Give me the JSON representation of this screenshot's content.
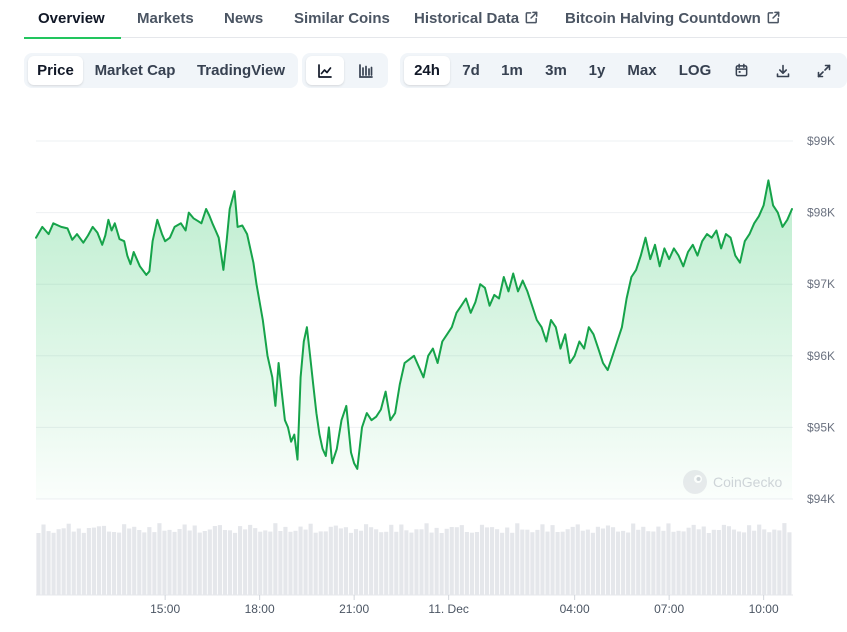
{
  "tabs": {
    "overview": "Overview",
    "markets": "Markets",
    "news": "News",
    "similar": "Similar Coins",
    "historical": "Historical Data",
    "halving": "Bitcoin Halving Countdown"
  },
  "chart_type_toggle": {
    "price": "Price",
    "market_cap": "Market Cap",
    "tradingview": "TradingView"
  },
  "view_icons": [
    "line-chart-icon",
    "candlestick-icon"
  ],
  "ranges": {
    "h24": "24h",
    "d7": "7d",
    "m1": "1m",
    "m3": "3m",
    "y1": "1y",
    "max": "Max",
    "log": "LOG"
  },
  "selected": {
    "chart_type": "Price",
    "range": "24h"
  },
  "tool_icons": [
    "calendar-icon",
    "download-icon",
    "expand-icon"
  ],
  "watermark": "CoinGecko",
  "colors": {
    "accent": "#16a34a",
    "tab_underline": "#22c55e",
    "area_fill": "#22c55e"
  },
  "chart_data": {
    "type": "area",
    "title": "",
    "xlabel": "",
    "ylabel": "",
    "ylim": [
      93800,
      99300
    ],
    "y_ticks": [
      {
        "value": 99000,
        "label": "$99K"
      },
      {
        "value": 98000,
        "label": "$98K"
      },
      {
        "value": 97000,
        "label": "$97K"
      },
      {
        "value": 96000,
        "label": "$96K"
      },
      {
        "value": 95000,
        "label": "$95K"
      },
      {
        "value": 94000,
        "label": "$94K"
      }
    ],
    "x_domain": [
      0,
      24
    ],
    "x_ticks": [
      {
        "t": 4.1,
        "label": "15:00"
      },
      {
        "t": 7.1,
        "label": "18:00"
      },
      {
        "t": 10.1,
        "label": "21:00"
      },
      {
        "t": 13.1,
        "label": "11. Dec"
      },
      {
        "t": 17.1,
        "label": "04:00"
      },
      {
        "t": 20.1,
        "label": "07:00"
      },
      {
        "t": 23.1,
        "label": "10:00"
      }
    ],
    "series": [
      {
        "points": [
          [
            0.0,
            97650
          ],
          [
            0.2,
            97800
          ],
          [
            0.4,
            97700
          ],
          [
            0.55,
            97850
          ],
          [
            0.8,
            97800
          ],
          [
            1.0,
            97780
          ],
          [
            1.15,
            97620
          ],
          [
            1.3,
            97700
          ],
          [
            1.5,
            97580
          ],
          [
            1.65,
            97680
          ],
          [
            1.8,
            97800
          ],
          [
            1.95,
            97720
          ],
          [
            2.1,
            97550
          ],
          [
            2.2,
            97680
          ],
          [
            2.3,
            97900
          ],
          [
            2.4,
            97750
          ],
          [
            2.5,
            97850
          ],
          [
            2.65,
            97630
          ],
          [
            2.8,
            97600
          ],
          [
            2.9,
            97400
          ],
          [
            3.0,
            97280
          ],
          [
            3.1,
            97450
          ],
          [
            3.3,
            97250
          ],
          [
            3.5,
            97130
          ],
          [
            3.6,
            97180
          ],
          [
            3.7,
            97600
          ],
          [
            3.85,
            97900
          ],
          [
            4.0,
            97700
          ],
          [
            4.1,
            97600
          ],
          [
            4.25,
            97650
          ],
          [
            4.4,
            97800
          ],
          [
            4.6,
            97850
          ],
          [
            4.75,
            97750
          ],
          [
            4.85,
            98000
          ],
          [
            5.0,
            97920
          ],
          [
            5.15,
            97880
          ],
          [
            5.25,
            97850
          ],
          [
            5.4,
            98050
          ],
          [
            5.5,
            97960
          ],
          [
            5.6,
            97850
          ],
          [
            5.7,
            97750
          ],
          [
            5.8,
            97650
          ],
          [
            5.95,
            97200
          ],
          [
            6.05,
            97600
          ],
          [
            6.15,
            98050
          ],
          [
            6.3,
            98300
          ],
          [
            6.4,
            97800
          ],
          [
            6.55,
            97820
          ],
          [
            6.7,
            97700
          ],
          [
            6.9,
            97300
          ],
          [
            7.0,
            97000
          ],
          [
            7.2,
            96500
          ],
          [
            7.35,
            96000
          ],
          [
            7.5,
            95700
          ],
          [
            7.6,
            95300
          ],
          [
            7.7,
            95900
          ],
          [
            7.8,
            95500
          ],
          [
            7.9,
            95100
          ],
          [
            8.0,
            95000
          ],
          [
            8.1,
            94800
          ],
          [
            8.2,
            94900
          ],
          [
            8.3,
            94550
          ],
          [
            8.4,
            95700
          ],
          [
            8.5,
            96200
          ],
          [
            8.6,
            96400
          ],
          [
            8.7,
            96000
          ],
          [
            8.8,
            95600
          ],
          [
            8.9,
            95200
          ],
          [
            9.0,
            94900
          ],
          [
            9.1,
            94700
          ],
          [
            9.2,
            94600
          ],
          [
            9.3,
            95000
          ],
          [
            9.4,
            94500
          ],
          [
            9.55,
            94700
          ],
          [
            9.7,
            95100
          ],
          [
            9.85,
            95300
          ],
          [
            10.0,
            94650
          ],
          [
            10.1,
            94500
          ],
          [
            10.2,
            94420
          ],
          [
            10.35,
            95000
          ],
          [
            10.5,
            95200
          ],
          [
            10.65,
            95100
          ],
          [
            10.8,
            95150
          ],
          [
            10.95,
            95250
          ],
          [
            11.1,
            95500
          ],
          [
            11.25,
            95100
          ],
          [
            11.4,
            95200
          ],
          [
            11.55,
            95600
          ],
          [
            11.7,
            95900
          ],
          [
            11.85,
            95950
          ],
          [
            12.0,
            96000
          ],
          [
            12.15,
            95850
          ],
          [
            12.3,
            95700
          ],
          [
            12.45,
            96000
          ],
          [
            12.6,
            96100
          ],
          [
            12.75,
            95900
          ],
          [
            12.9,
            96200
          ],
          [
            13.05,
            96300
          ],
          [
            13.2,
            96400
          ],
          [
            13.35,
            96600
          ],
          [
            13.5,
            96700
          ],
          [
            13.65,
            96800
          ],
          [
            13.8,
            96600
          ],
          [
            13.95,
            96750
          ],
          [
            14.1,
            97000
          ],
          [
            14.25,
            96950
          ],
          [
            14.4,
            96700
          ],
          [
            14.55,
            96850
          ],
          [
            14.7,
            96800
          ],
          [
            14.85,
            97100
          ],
          [
            15.0,
            96900
          ],
          [
            15.15,
            97150
          ],
          [
            15.3,
            96900
          ],
          [
            15.45,
            97050
          ],
          [
            15.6,
            96900
          ],
          [
            15.75,
            96700
          ],
          [
            15.9,
            96500
          ],
          [
            16.05,
            96400
          ],
          [
            16.2,
            96200
          ],
          [
            16.35,
            96500
          ],
          [
            16.5,
            96400
          ],
          [
            16.65,
            96100
          ],
          [
            16.8,
            96300
          ],
          [
            16.95,
            95900
          ],
          [
            17.1,
            96000
          ],
          [
            17.25,
            96200
          ],
          [
            17.4,
            96100
          ],
          [
            17.55,
            96400
          ],
          [
            17.7,
            96300
          ],
          [
            17.85,
            96100
          ],
          [
            18.0,
            95900
          ],
          [
            18.15,
            95800
          ],
          [
            18.3,
            96000
          ],
          [
            18.45,
            96200
          ],
          [
            18.6,
            96400
          ],
          [
            18.75,
            96800
          ],
          [
            18.9,
            97100
          ],
          [
            19.05,
            97200
          ],
          [
            19.2,
            97400
          ],
          [
            19.35,
            97650
          ],
          [
            19.5,
            97350
          ],
          [
            19.65,
            97550
          ],
          [
            19.8,
            97250
          ],
          [
            19.95,
            97500
          ],
          [
            20.1,
            97350
          ],
          [
            20.25,
            97500
          ],
          [
            20.4,
            97400
          ],
          [
            20.55,
            97250
          ],
          [
            20.7,
            97450
          ],
          [
            20.85,
            97550
          ],
          [
            21.0,
            97400
          ],
          [
            21.15,
            97600
          ],
          [
            21.3,
            97700
          ],
          [
            21.45,
            97650
          ],
          [
            21.6,
            97750
          ],
          [
            21.75,
            97500
          ],
          [
            21.9,
            97700
          ],
          [
            22.05,
            97650
          ],
          [
            22.2,
            97400
          ],
          [
            22.35,
            97300
          ],
          [
            22.5,
            97600
          ],
          [
            22.65,
            97700
          ],
          [
            22.8,
            97850
          ],
          [
            22.95,
            97950
          ],
          [
            23.1,
            98100
          ],
          [
            23.25,
            98450
          ],
          [
            23.4,
            98100
          ],
          [
            23.55,
            98000
          ],
          [
            23.7,
            97800
          ],
          [
            23.85,
            97900
          ],
          [
            24.0,
            98050
          ]
        ]
      }
    ],
    "volume_bars_count": 150,
    "grid": true,
    "legend": "none"
  }
}
